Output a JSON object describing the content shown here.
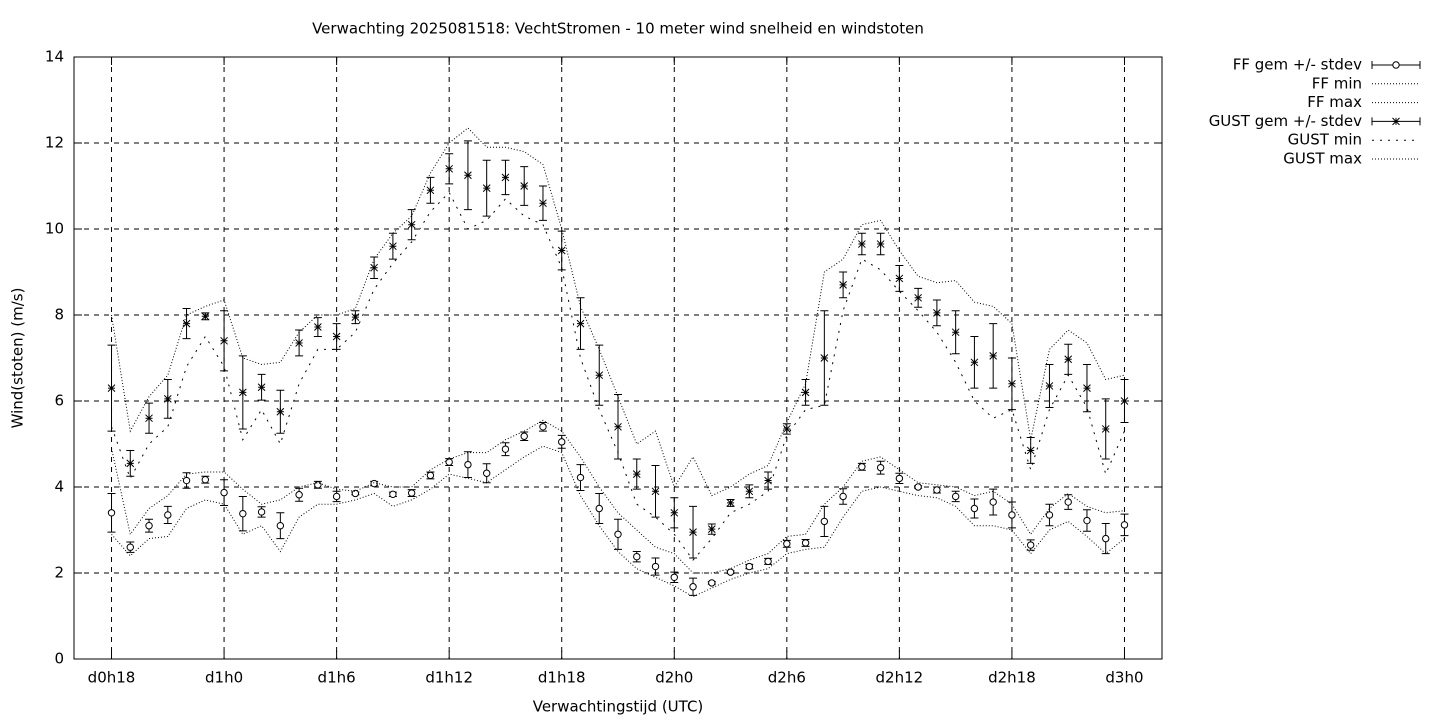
{
  "chart_data": {
    "type": "errorbar-line",
    "title": "Verwachting 2025081518: VechtStromen - 10 meter wind snelheid en windstoten",
    "x_label": "Verwachtingstijd (UTC)",
    "y_label": "Wind(stoten) (m/s)",
    "categories": [
      "d0h18",
      null,
      null,
      null,
      null,
      null,
      "d1h0",
      null,
      null,
      null,
      null,
      null,
      "d1h6",
      null,
      null,
      null,
      null,
      null,
      "d1h12",
      null,
      null,
      null,
      null,
      null,
      "d1h18",
      null,
      null,
      null,
      null,
      null,
      "d2h0",
      null,
      null,
      null,
      null,
      null,
      "d2h6",
      null,
      null,
      null,
      null,
      null,
      "d2h12",
      null,
      null,
      null,
      null,
      null,
      "d2h18",
      null,
      null,
      null,
      null,
      null,
      "d3h0"
    ],
    "ylim": [
      0,
      14
    ],
    "yticks": [
      0,
      2,
      4,
      6,
      8,
      10,
      12,
      14
    ],
    "grid": true,
    "legend": "outside-right",
    "series": [
      {
        "name": "FF gem +/- stdev",
        "style": "errorbars",
        "marker": "circle",
        "color": "#000000",
        "values": [
          3.4,
          2.6,
          3.1,
          3.35,
          4.15,
          4.17,
          3.87,
          3.38,
          3.42,
          3.1,
          3.82,
          4.05,
          3.78,
          3.85,
          4.08,
          3.83,
          3.86,
          4.27,
          4.58,
          4.52,
          4.32,
          4.88,
          5.18,
          5.4,
          5.05,
          4.22,
          3.5,
          2.9,
          2.38,
          2.15,
          1.9,
          1.68,
          1.77,
          2.02,
          2.15,
          2.27,
          2.68,
          2.7,
          3.2,
          3.78,
          4.47,
          4.45,
          4.2,
          4.0,
          3.93,
          3.78,
          3.5,
          3.65,
          3.35,
          2.65,
          3.35,
          3.65,
          3.22,
          2.8,
          3.12
        ],
        "errors": [
          0.45,
          0.12,
          0.15,
          0.2,
          0.18,
          0.08,
          0.3,
          0.4,
          0.12,
          0.3,
          0.15,
          0.08,
          0.12,
          0.03,
          0.05,
          0.05,
          0.08,
          0.08,
          0.08,
          0.3,
          0.22,
          0.15,
          0.1,
          0.1,
          0.15,
          0.3,
          0.35,
          0.35,
          0.12,
          0.2,
          0.12,
          0.2,
          0.03,
          0.03,
          0.05,
          0.07,
          0.08,
          0.08,
          0.35,
          0.18,
          0.08,
          0.15,
          0.12,
          0.03,
          0.07,
          0.12,
          0.22,
          0.3,
          0.3,
          0.12,
          0.25,
          0.17,
          0.25,
          0.35,
          0.25
        ]
      },
      {
        "name": "FF min",
        "style": "line",
        "dash": "1,2",
        "color": "#000000",
        "values": [
          2.9,
          2.4,
          2.8,
          2.85,
          3.5,
          3.7,
          3.6,
          2.9,
          3.1,
          2.5,
          3.3,
          3.6,
          3.6,
          3.7,
          3.85,
          3.55,
          3.7,
          3.95,
          4.3,
          4.2,
          4.1,
          4.4,
          4.7,
          4.95,
          4.8,
          3.8,
          3.1,
          2.5,
          2.1,
          1.9,
          1.7,
          1.45,
          1.65,
          1.85,
          2.0,
          2.1,
          2.45,
          2.55,
          2.6,
          3.3,
          3.9,
          4.0,
          3.9,
          3.8,
          3.75,
          3.55,
          3.1,
          3.1,
          3.0,
          2.45,
          3.0,
          3.2,
          2.85,
          2.45,
          2.8
        ]
      },
      {
        "name": "FF max",
        "style": "line",
        "dash": "1,2",
        "color": "#000000",
        "values": [
          4.9,
          2.9,
          3.5,
          3.8,
          4.3,
          4.35,
          4.35,
          3.95,
          3.6,
          3.7,
          4.0,
          4.1,
          3.95,
          3.9,
          4.1,
          4.0,
          4.0,
          4.4,
          4.65,
          4.8,
          4.8,
          5.1,
          5.3,
          5.55,
          5.3,
          4.7,
          4.0,
          3.4,
          3.0,
          2.6,
          2.45,
          2.0,
          2.0,
          2.1,
          2.3,
          2.45,
          2.85,
          2.9,
          3.6,
          4.0,
          4.6,
          4.7,
          4.4,
          4.1,
          4.05,
          4.0,
          3.8,
          3.9,
          3.6,
          2.9,
          3.5,
          3.85,
          3.55,
          3.4,
          3.45
        ]
      },
      {
        "name": "GUST gem +/- stdev",
        "style": "errorbars",
        "marker": "star",
        "color": "#000000",
        "values": [
          6.3,
          4.55,
          5.6,
          6.05,
          7.8,
          7.97,
          7.4,
          6.2,
          6.32,
          5.75,
          7.35,
          7.72,
          7.5,
          7.95,
          9.1,
          9.6,
          10.1,
          10.9,
          11.4,
          11.25,
          10.95,
          11.2,
          11.0,
          10.6,
          9.5,
          7.8,
          6.6,
          5.4,
          4.3,
          3.9,
          3.4,
          2.95,
          3.02,
          3.63,
          3.9,
          4.15,
          5.35,
          6.2,
          7.0,
          8.7,
          9.65,
          9.65,
          8.85,
          8.4,
          8.05,
          7.6,
          6.9,
          7.05,
          6.4,
          4.85,
          6.35,
          6.97,
          6.3,
          5.35,
          6.0
        ],
        "errors": [
          1.0,
          0.3,
          0.35,
          0.45,
          0.35,
          0.08,
          0.7,
          0.85,
          0.3,
          0.5,
          0.3,
          0.22,
          0.3,
          0.15,
          0.25,
          0.3,
          0.35,
          0.3,
          0.35,
          0.8,
          0.65,
          0.4,
          0.45,
          0.4,
          0.45,
          0.6,
          0.7,
          0.75,
          0.35,
          0.6,
          0.35,
          0.6,
          0.12,
          0.08,
          0.15,
          0.2,
          0.12,
          0.3,
          1.1,
          0.3,
          0.25,
          0.25,
          0.3,
          0.22,
          0.3,
          0.5,
          0.6,
          0.75,
          0.6,
          0.3,
          0.5,
          0.35,
          0.55,
          0.7,
          0.5
        ]
      },
      {
        "name": "GUST min",
        "style": "line",
        "dash": "2,6",
        "color": "#000000",
        "values": [
          5.4,
          4.2,
          5.0,
          5.4,
          6.8,
          7.5,
          6.8,
          5.1,
          5.8,
          5.0,
          6.4,
          7.2,
          7.2,
          7.6,
          8.6,
          9.2,
          9.7,
          10.4,
          10.85,
          10.0,
          10.2,
          10.7,
          10.3,
          10.1,
          9.1,
          7.0,
          5.8,
          4.8,
          3.6,
          3.3,
          2.9,
          2.3,
          2.8,
          3.4,
          3.6,
          3.9,
          5.2,
          5.8,
          5.9,
          8.1,
          9.3,
          9.05,
          8.55,
          8.1,
          7.6,
          6.9,
          6.0,
          5.6,
          5.8,
          4.4,
          5.8,
          6.6,
          5.85,
          4.3,
          5.3
        ]
      },
      {
        "name": "GUST max",
        "style": "line",
        "dash": "1,2",
        "color": "#000000",
        "values": [
          8.0,
          5.3,
          6.1,
          6.6,
          8.0,
          8.2,
          8.35,
          7.0,
          6.85,
          6.9,
          7.6,
          8.0,
          8.0,
          8.15,
          9.3,
          9.9,
          10.3,
          11.3,
          12.0,
          12.35,
          11.9,
          11.9,
          11.8,
          11.5,
          10.0,
          8.2,
          7.2,
          6.1,
          5.0,
          5.3,
          4.0,
          4.7,
          3.8,
          4.0,
          4.3,
          4.5,
          5.5,
          6.4,
          9.0,
          9.3,
          10.1,
          10.2,
          9.5,
          8.9,
          8.75,
          8.8,
          8.3,
          8.2,
          7.8,
          5.1,
          7.2,
          7.65,
          7.35,
          6.5,
          6.6
        ]
      }
    ]
  }
}
